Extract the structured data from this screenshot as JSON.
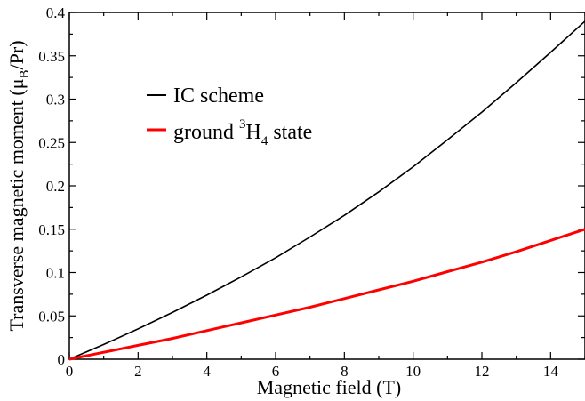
{
  "chart_data": {
    "type": "line",
    "xlabel": "Magnetic field (T)",
    "ylabel": "Transverse magnetic moment (μB/Pr)",
    "ylabel_parts": {
      "main": "Transverse magnetic moment (μ",
      "sub": "B",
      "tail": "/Pr)"
    },
    "xlim": [
      0,
      15
    ],
    "ylim": [
      0,
      0.4
    ],
    "xticks": [
      "0",
      "2",
      "4",
      "6",
      "8",
      "10",
      "12",
      "14"
    ],
    "yticks": [
      "0",
      "0.05",
      "0.1",
      "0.15",
      "0.2",
      "0.25",
      "0.3",
      "0.35",
      "0.4"
    ],
    "grid": false,
    "legend_position": "upper-left",
    "series": [
      {
        "name": "IC scheme",
        "color": "#000000",
        "x": [
          0,
          1,
          2,
          3,
          4,
          5,
          6,
          7,
          8,
          9,
          10,
          11,
          12,
          13,
          14,
          15
        ],
        "y": [
          0,
          0.017,
          0.035,
          0.054,
          0.074,
          0.095,
          0.117,
          0.141,
          0.166,
          0.193,
          0.222,
          0.253,
          0.285,
          0.319,
          0.354,
          0.39
        ]
      },
      {
        "name": "ground 3H4 state",
        "name_parts": {
          "pre": "ground ",
          "sup": "3",
          "main": "H",
          "sub": "4",
          "post": " state"
        },
        "color": "#ff0000",
        "x": [
          0,
          1,
          2,
          3,
          4,
          5,
          6,
          7,
          8,
          9,
          10,
          11,
          12,
          13,
          14,
          15
        ],
        "y": [
          0,
          0.008,
          0.016,
          0.024,
          0.033,
          0.042,
          0.051,
          0.06,
          0.07,
          0.08,
          0.09,
          0.101,
          0.112,
          0.124,
          0.137,
          0.15
        ]
      }
    ]
  }
}
